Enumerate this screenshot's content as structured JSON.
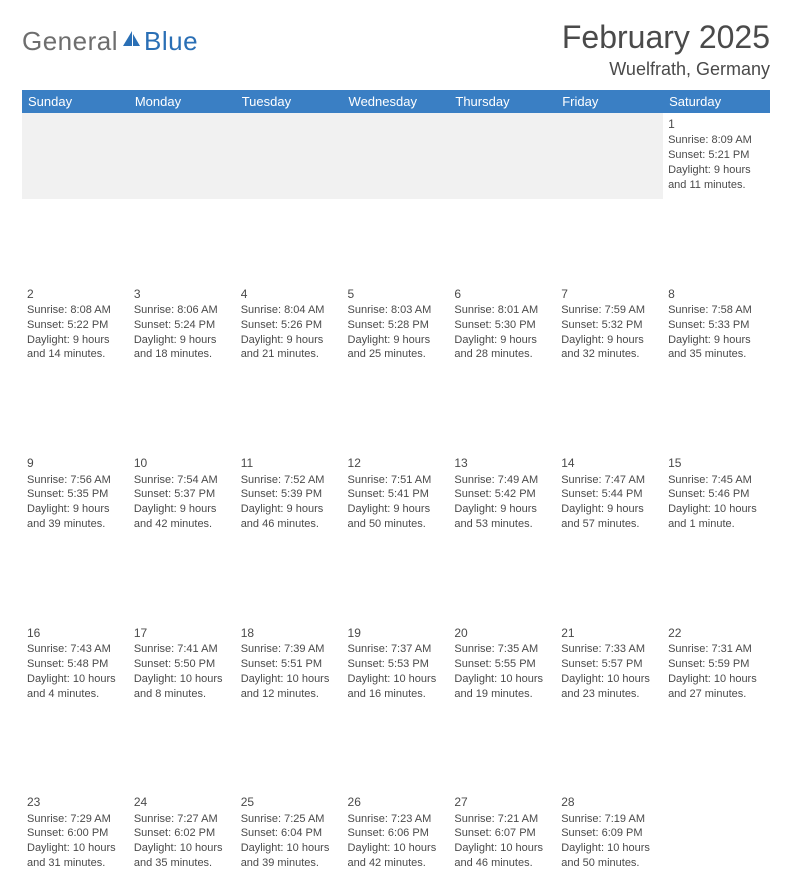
{
  "logo": {
    "part1": "General",
    "part2": "Blue",
    "icon_color": "#2a6fb5"
  },
  "title": "February 2025",
  "location": "Wuelfrath, Germany",
  "header_bg": "#3a7fc4",
  "header_fg": "#ffffff",
  "sep_color": "#3a7fc4",
  "blank_bg": "#f1f1f1",
  "text_color": "#4a4a4a",
  "day_headers": [
    "Sunday",
    "Monday",
    "Tuesday",
    "Wednesday",
    "Thursday",
    "Friday",
    "Saturday"
  ],
  "weeks": [
    [
      null,
      null,
      null,
      null,
      null,
      null,
      {
        "n": "1",
        "sr": "Sunrise: 8:09 AM",
        "ss": "Sunset: 5:21 PM",
        "dl": "Daylight: 9 hours and 11 minutes."
      }
    ],
    [
      {
        "n": "2",
        "sr": "Sunrise: 8:08 AM",
        "ss": "Sunset: 5:22 PM",
        "dl": "Daylight: 9 hours and 14 minutes."
      },
      {
        "n": "3",
        "sr": "Sunrise: 8:06 AM",
        "ss": "Sunset: 5:24 PM",
        "dl": "Daylight: 9 hours and 18 minutes."
      },
      {
        "n": "4",
        "sr": "Sunrise: 8:04 AM",
        "ss": "Sunset: 5:26 PM",
        "dl": "Daylight: 9 hours and 21 minutes."
      },
      {
        "n": "5",
        "sr": "Sunrise: 8:03 AM",
        "ss": "Sunset: 5:28 PM",
        "dl": "Daylight: 9 hours and 25 minutes."
      },
      {
        "n": "6",
        "sr": "Sunrise: 8:01 AM",
        "ss": "Sunset: 5:30 PM",
        "dl": "Daylight: 9 hours and 28 minutes."
      },
      {
        "n": "7",
        "sr": "Sunrise: 7:59 AM",
        "ss": "Sunset: 5:32 PM",
        "dl": "Daylight: 9 hours and 32 minutes."
      },
      {
        "n": "8",
        "sr": "Sunrise: 7:58 AM",
        "ss": "Sunset: 5:33 PM",
        "dl": "Daylight: 9 hours and 35 minutes."
      }
    ],
    [
      {
        "n": "9",
        "sr": "Sunrise: 7:56 AM",
        "ss": "Sunset: 5:35 PM",
        "dl": "Daylight: 9 hours and 39 minutes."
      },
      {
        "n": "10",
        "sr": "Sunrise: 7:54 AM",
        "ss": "Sunset: 5:37 PM",
        "dl": "Daylight: 9 hours and 42 minutes."
      },
      {
        "n": "11",
        "sr": "Sunrise: 7:52 AM",
        "ss": "Sunset: 5:39 PM",
        "dl": "Daylight: 9 hours and 46 minutes."
      },
      {
        "n": "12",
        "sr": "Sunrise: 7:51 AM",
        "ss": "Sunset: 5:41 PM",
        "dl": "Daylight: 9 hours and 50 minutes."
      },
      {
        "n": "13",
        "sr": "Sunrise: 7:49 AM",
        "ss": "Sunset: 5:42 PM",
        "dl": "Daylight: 9 hours and 53 minutes."
      },
      {
        "n": "14",
        "sr": "Sunrise: 7:47 AM",
        "ss": "Sunset: 5:44 PM",
        "dl": "Daylight: 9 hours and 57 minutes."
      },
      {
        "n": "15",
        "sr": "Sunrise: 7:45 AM",
        "ss": "Sunset: 5:46 PM",
        "dl": "Daylight: 10 hours and 1 minute."
      }
    ],
    [
      {
        "n": "16",
        "sr": "Sunrise: 7:43 AM",
        "ss": "Sunset: 5:48 PM",
        "dl": "Daylight: 10 hours and 4 minutes."
      },
      {
        "n": "17",
        "sr": "Sunrise: 7:41 AM",
        "ss": "Sunset: 5:50 PM",
        "dl": "Daylight: 10 hours and 8 minutes."
      },
      {
        "n": "18",
        "sr": "Sunrise: 7:39 AM",
        "ss": "Sunset: 5:51 PM",
        "dl": "Daylight: 10 hours and 12 minutes."
      },
      {
        "n": "19",
        "sr": "Sunrise: 7:37 AM",
        "ss": "Sunset: 5:53 PM",
        "dl": "Daylight: 10 hours and 16 minutes."
      },
      {
        "n": "20",
        "sr": "Sunrise: 7:35 AM",
        "ss": "Sunset: 5:55 PM",
        "dl": "Daylight: 10 hours and 19 minutes."
      },
      {
        "n": "21",
        "sr": "Sunrise: 7:33 AM",
        "ss": "Sunset: 5:57 PM",
        "dl": "Daylight: 10 hours and 23 minutes."
      },
      {
        "n": "22",
        "sr": "Sunrise: 7:31 AM",
        "ss": "Sunset: 5:59 PM",
        "dl": "Daylight: 10 hours and 27 minutes."
      }
    ],
    [
      {
        "n": "23",
        "sr": "Sunrise: 7:29 AM",
        "ss": "Sunset: 6:00 PM",
        "dl": "Daylight: 10 hours and 31 minutes."
      },
      {
        "n": "24",
        "sr": "Sunrise: 7:27 AM",
        "ss": "Sunset: 6:02 PM",
        "dl": "Daylight: 10 hours and 35 minutes."
      },
      {
        "n": "25",
        "sr": "Sunrise: 7:25 AM",
        "ss": "Sunset: 6:04 PM",
        "dl": "Daylight: 10 hours and 39 minutes."
      },
      {
        "n": "26",
        "sr": "Sunrise: 7:23 AM",
        "ss": "Sunset: 6:06 PM",
        "dl": "Daylight: 10 hours and 42 minutes."
      },
      {
        "n": "27",
        "sr": "Sunrise: 7:21 AM",
        "ss": "Sunset: 6:07 PM",
        "dl": "Daylight: 10 hours and 46 minutes."
      },
      {
        "n": "28",
        "sr": "Sunrise: 7:19 AM",
        "ss": "Sunset: 6:09 PM",
        "dl": "Daylight: 10 hours and 50 minutes."
      },
      null
    ]
  ]
}
